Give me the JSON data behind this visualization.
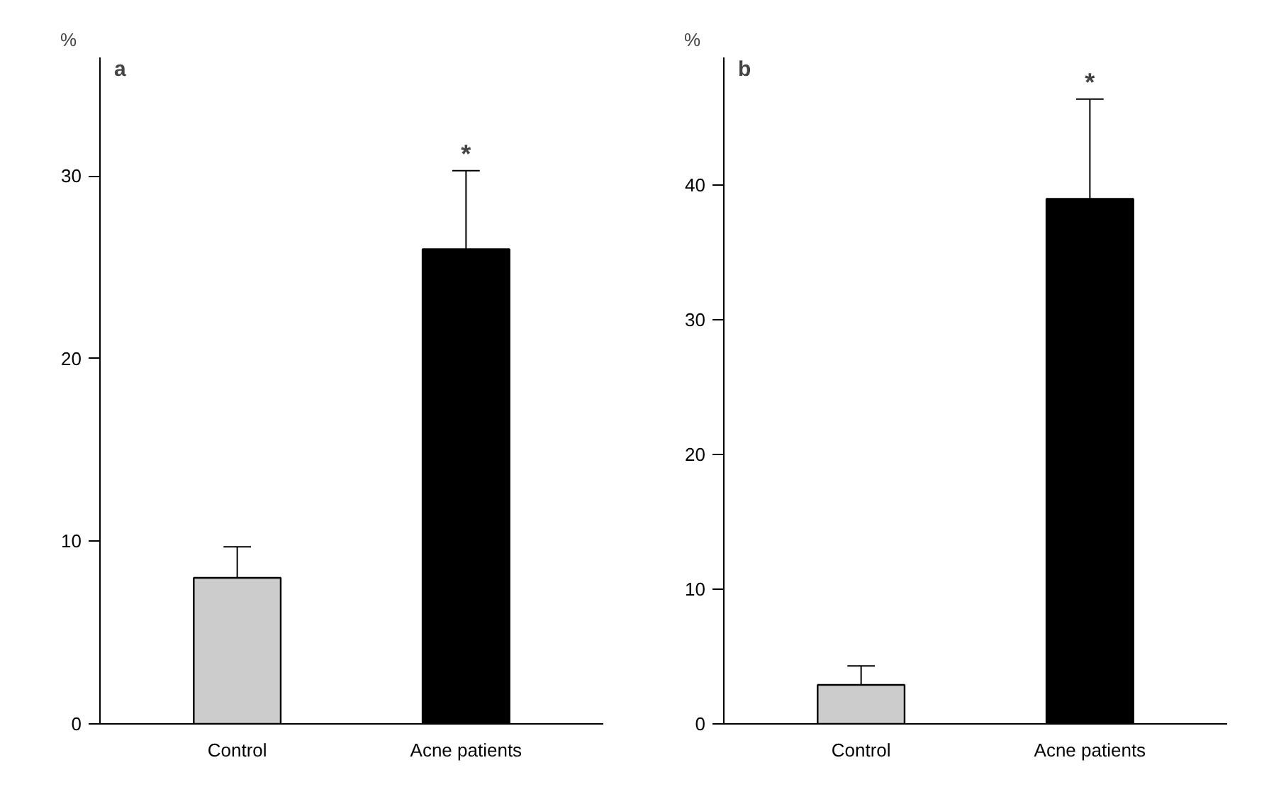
{
  "chart_data": [
    {
      "type": "bar",
      "title": "a",
      "ylabel": "%",
      "categories": [
        "Control",
        "Acne patients"
      ],
      "values": [
        8,
        26
      ],
      "colors": [
        "#cccccc",
        "#000000"
      ],
      "errors": [
        [
          8,
          9.7
        ],
        [
          26,
          30.3
        ]
      ],
      "ylim": [
        0,
        36.5
      ],
      "yticks": [
        0,
        10,
        20,
        30
      ],
      "grid": false,
      "annotations": [
        "*"
      ]
    },
    {
      "type": "bar",
      "title": "b",
      "ylabel": "%",
      "categories": [
        "Control",
        "Acne patients"
      ],
      "values": [
        2.9,
        39
      ],
      "colors": [
        "#cccccc",
        "#000000"
      ],
      "errors": [
        [
          2.9,
          4.3
        ],
        [
          39,
          46.4
        ]
      ],
      "ylim": [
        0,
        49.5
      ],
      "yticks": [
        0,
        10,
        20,
        30,
        40
      ],
      "grid": false,
      "annotations": [
        "*"
      ]
    }
  ]
}
